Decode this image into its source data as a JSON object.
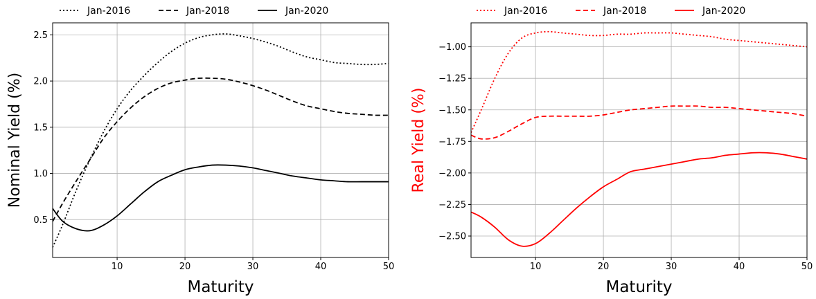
{
  "colors": {
    "nominal": "#000000",
    "real": "#ff0000",
    "grid": "#b0b0b0",
    "axis": "#000000"
  },
  "chart_data": [
    {
      "type": "line",
      "xlabel": "Maturity",
      "ylabel": "Nominal Yield (%)",
      "ylabel_color": "#000000",
      "xlim": [
        0.5,
        50
      ],
      "ylim": [
        0.09,
        2.63
      ],
      "xticks": [
        10,
        20,
        30,
        40,
        50
      ],
      "yticks": [
        0.5,
        1.0,
        1.5,
        2.0,
        2.5
      ],
      "ytick_labels": [
        "0.5",
        "1.0",
        "1.5",
        "2.0",
        "2.5"
      ],
      "grid": true,
      "legend_position": "top, above plot",
      "series": [
        {
          "name": "Jan-2016",
          "style": "dotted",
          "color": "#000000",
          "x": [
            0.5,
            2,
            4,
            6,
            8,
            10,
            12,
            14,
            16,
            18,
            20,
            22,
            24,
            26,
            28,
            30,
            32,
            34,
            36,
            38,
            40,
            42,
            44,
            46,
            48,
            50
          ],
          "y": [
            0.2,
            0.45,
            0.82,
            1.15,
            1.45,
            1.7,
            1.9,
            2.06,
            2.2,
            2.32,
            2.41,
            2.47,
            2.5,
            2.51,
            2.49,
            2.46,
            2.42,
            2.37,
            2.31,
            2.26,
            2.23,
            2.2,
            2.19,
            2.18,
            2.18,
            2.19
          ]
        },
        {
          "name": "Jan-2018",
          "style": "dashed",
          "color": "#000000",
          "x": [
            0.5,
            2,
            4,
            6,
            8,
            10,
            12,
            14,
            16,
            18,
            20,
            22,
            24,
            26,
            28,
            30,
            32,
            34,
            36,
            38,
            40,
            42,
            44,
            46,
            48,
            50
          ],
          "y": [
            0.48,
            0.68,
            0.92,
            1.15,
            1.38,
            1.56,
            1.71,
            1.83,
            1.92,
            1.98,
            2.01,
            2.03,
            2.03,
            2.02,
            1.99,
            1.95,
            1.9,
            1.84,
            1.78,
            1.73,
            1.7,
            1.67,
            1.65,
            1.64,
            1.63,
            1.63
          ]
        },
        {
          "name": "Jan-2020",
          "style": "solid",
          "color": "#000000",
          "x": [
            0.5,
            2,
            4,
            6,
            8,
            10,
            12,
            14,
            16,
            18,
            20,
            22,
            24,
            26,
            28,
            30,
            32,
            34,
            36,
            38,
            40,
            42,
            44,
            46,
            48,
            50
          ],
          "y": [
            0.62,
            0.48,
            0.4,
            0.38,
            0.44,
            0.54,
            0.67,
            0.8,
            0.91,
            0.98,
            1.04,
            1.07,
            1.09,
            1.09,
            1.08,
            1.06,
            1.03,
            1.0,
            0.97,
            0.95,
            0.93,
            0.92,
            0.91,
            0.91,
            0.91,
            0.91
          ]
        }
      ]
    },
    {
      "type": "line",
      "xlabel": "Maturity",
      "ylabel": "Real Yield (%)",
      "ylabel_color": "#ff0000",
      "xlim": [
        0.5,
        50
      ],
      "ylim": [
        -2.67,
        -0.81
      ],
      "xticks": [
        10,
        20,
        30,
        40,
        50
      ],
      "yticks": [
        -2.5,
        -2.25,
        -2.0,
        -1.75,
        -1.5,
        -1.25,
        -1.0
      ],
      "ytick_labels": [
        "−2.50",
        "−2.25",
        "−2.00",
        "−1.75",
        "−1.50",
        "−1.25",
        "−1.00"
      ],
      "grid": true,
      "legend_position": "top, above plot",
      "series": [
        {
          "name": "Jan-2016",
          "style": "dotted",
          "color": "#ff0000",
          "x": [
            0.5,
            2,
            4,
            6,
            8,
            10,
            12,
            14,
            16,
            18,
            20,
            22,
            24,
            26,
            28,
            30,
            32,
            34,
            36,
            38,
            40,
            42,
            44,
            46,
            48,
            50
          ],
          "y": [
            -1.68,
            -1.5,
            -1.25,
            -1.05,
            -0.93,
            -0.89,
            -0.88,
            -0.89,
            -0.9,
            -0.91,
            -0.91,
            -0.9,
            -0.9,
            -0.89,
            -0.89,
            -0.89,
            -0.9,
            -0.91,
            -0.92,
            -0.94,
            -0.95,
            -0.96,
            -0.97,
            -0.98,
            -0.99,
            -1.0
          ]
        },
        {
          "name": "Jan-2018",
          "style": "dashed",
          "color": "#ff0000",
          "x": [
            0.5,
            2,
            4,
            6,
            8,
            10,
            12,
            14,
            16,
            18,
            20,
            22,
            24,
            26,
            28,
            30,
            32,
            34,
            36,
            38,
            40,
            42,
            44,
            46,
            48,
            50
          ],
          "y": [
            -1.7,
            -1.73,
            -1.72,
            -1.67,
            -1.61,
            -1.56,
            -1.55,
            -1.55,
            -1.55,
            -1.55,
            -1.54,
            -1.52,
            -1.5,
            -1.49,
            -1.48,
            -1.47,
            -1.47,
            -1.47,
            -1.48,
            -1.48,
            -1.49,
            -1.5,
            -1.51,
            -1.52,
            -1.53,
            -1.55
          ]
        },
        {
          "name": "Jan-2020",
          "style": "solid",
          "color": "#ff0000",
          "x": [
            0.5,
            2,
            4,
            6,
            8,
            10,
            12,
            14,
            16,
            18,
            20,
            22,
            24,
            26,
            28,
            30,
            32,
            34,
            36,
            38,
            40,
            42,
            44,
            46,
            48,
            50
          ],
          "y": [
            -2.31,
            -2.35,
            -2.43,
            -2.53,
            -2.58,
            -2.56,
            -2.48,
            -2.38,
            -2.28,
            -2.19,
            -2.11,
            -2.05,
            -1.99,
            -1.97,
            -1.95,
            -1.93,
            -1.91,
            -1.89,
            -1.88,
            -1.86,
            -1.85,
            -1.84,
            -1.84,
            -1.85,
            -1.87,
            -1.89
          ]
        }
      ]
    }
  ]
}
